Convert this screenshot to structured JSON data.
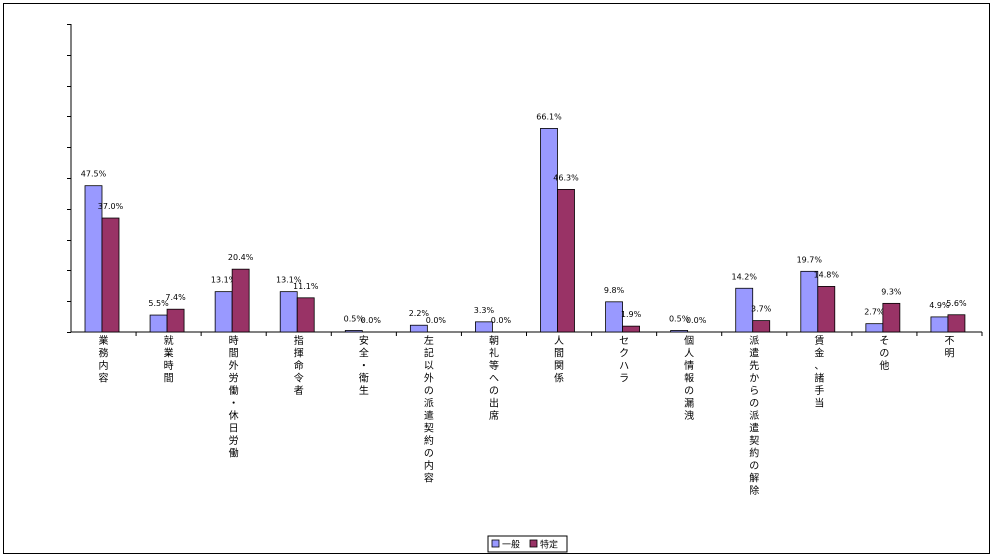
{
  "chart_data": {
    "type": "bar",
    "categories": [
      "業務内容",
      "就業時間",
      "時間外労働・休日労働",
      "指揮命令者",
      "安全・衛生",
      "左記以外の派遣契約の内容",
      "朝礼等への出席",
      "人間関係",
      "セクハラ",
      "個人情報の漏洩",
      "派遣先からの派遣契約の解除",
      "賃金、諸手当",
      "その他",
      "不明"
    ],
    "series": [
      {
        "name": "一般",
        "color": "#9999ff",
        "values": [
          47.5,
          5.5,
          13.1,
          13.1,
          0.5,
          2.2,
          3.3,
          66.1,
          9.8,
          0.5,
          14.2,
          19.7,
          2.7,
          4.9
        ],
        "labels": [
          "47.5%",
          "5.5%",
          "13.1%",
          "13.1%",
          "0.5%",
          "2.2%",
          "3.3%",
          "66.1%",
          "9.8%",
          "0.5%",
          "14.2%",
          "19.7%",
          "2.7%",
          "4.9%"
        ]
      },
      {
        "name": "特定",
        "color": "#993366",
        "values": [
          37.0,
          7.4,
          20.4,
          11.1,
          0.0,
          0.0,
          0.0,
          46.3,
          1.9,
          0.0,
          3.7,
          14.8,
          9.3,
          5.6
        ],
        "labels": [
          "37.0%",
          "7.4%",
          "20.4%",
          "11.1%",
          "0.0%",
          "0.0%",
          "0.0%",
          "46.3%",
          "1.9%",
          "0.0%",
          "3.7%",
          "14.8%",
          "9.3%",
          "5.6%"
        ]
      }
    ],
    "ylim": [
      0,
      100
    ],
    "y_tick_step": 10,
    "y_tick_labels": "none",
    "grid": false,
    "legend": "bottom-center"
  }
}
